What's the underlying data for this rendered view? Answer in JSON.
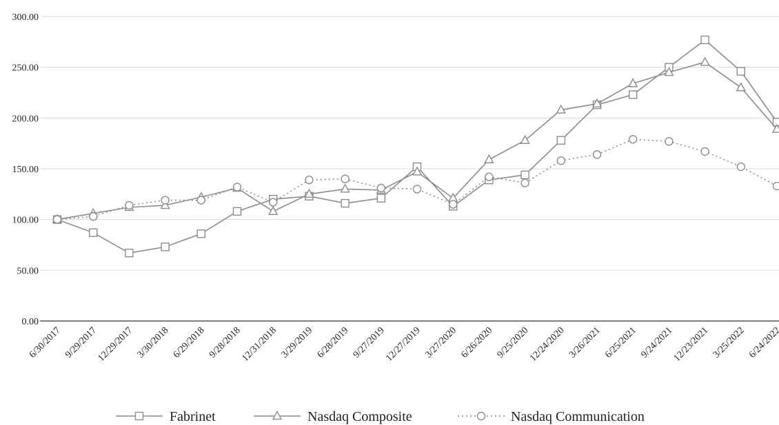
{
  "chart_data": {
    "type": "line",
    "title": "",
    "xlabel": "",
    "ylabel": "",
    "ylim": [
      0,
      300
    ],
    "yticks": [
      "0.00",
      "50.00",
      "100.00",
      "150.00",
      "200.00",
      "250.00",
      "300.00"
    ],
    "categories": [
      "6/30/2017",
      "9/29/2017",
      "12/29/2017",
      "3/30/2018",
      "6/29/2018",
      "9/28/2018",
      "12/31/2018",
      "3/29/2019",
      "6/28/2019",
      "9/27/2019",
      "12/27/2019",
      "3/27/2020",
      "6/26/2020",
      "9/25/2020",
      "12/24/2020",
      "3/26/2021",
      "6/25/2021",
      "9/24/2021",
      "12/23/2021",
      "3/25/2022",
      "6/24/2022"
    ],
    "grid": "horizontal",
    "legend_position": "bottom",
    "series": [
      {
        "name": "Fabrinet",
        "marker": "square",
        "line_style": "solid",
        "color": "#8c8c8c",
        "values": [
          100,
          87,
          67,
          73,
          86,
          108,
          120,
          123,
          116,
          121,
          152,
          113,
          139,
          144,
          178,
          213,
          223,
          250,
          277,
          246,
          196
        ]
      },
      {
        "name": "Nasdaq Composite",
        "marker": "triangle",
        "line_style": "solid",
        "color": "#8c8c8c",
        "values": [
          100,
          106,
          112,
          114,
          122,
          131,
          108,
          125,
          130,
          129,
          147,
          121,
          159,
          178,
          208,
          214,
          234,
          245,
          255,
          230,
          189
        ]
      },
      {
        "name": "Nasdaq Communication",
        "marker": "circle",
        "line_style": "dotted",
        "color": "#8c8c8c",
        "values": [
          100,
          103,
          114,
          119,
          119,
          132,
          117,
          139,
          140,
          131,
          130,
          115,
          142,
          136,
          158,
          164,
          179,
          177,
          167,
          152,
          133
        ]
      }
    ]
  }
}
